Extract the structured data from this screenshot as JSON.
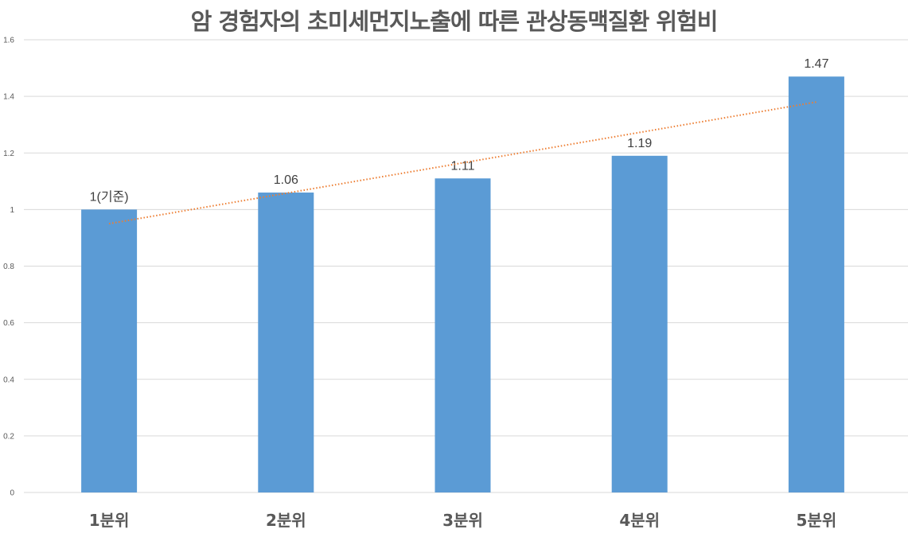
{
  "chart_data": {
    "type": "bar",
    "title": "암 경험자의 초미세먼지노출에 따른 관상동맥질환 위험비",
    "xlabel": "",
    "ylabel": "",
    "categories": [
      "1분위",
      "2분위",
      "3분위",
      "4분위",
      "5분위"
    ],
    "values": [
      1.0,
      1.06,
      1.11,
      1.19,
      1.47
    ],
    "data_labels": [
      "1(기준)",
      "1.06",
      "1.11",
      "1.19",
      "1.47"
    ],
    "ylim": [
      0,
      1.6
    ],
    "yticks": [
      0,
      0.2,
      0.4,
      0.6,
      0.8,
      1,
      1.2,
      1.4,
      1.6
    ],
    "ytick_labels": [
      "0",
      "0.2",
      "0.4",
      "0.6",
      "0.8",
      "1",
      "1.2",
      "1.4",
      "1.6"
    ],
    "grid": true,
    "legend": null,
    "trendline": {
      "type": "linear",
      "style": "dotted",
      "start": 0.95,
      "end": 1.38
    },
    "colors": {
      "bar": "#5b9bd5",
      "trendline": "#ed7d31",
      "grid": "#d9d9d9",
      "text": "#595959"
    }
  }
}
